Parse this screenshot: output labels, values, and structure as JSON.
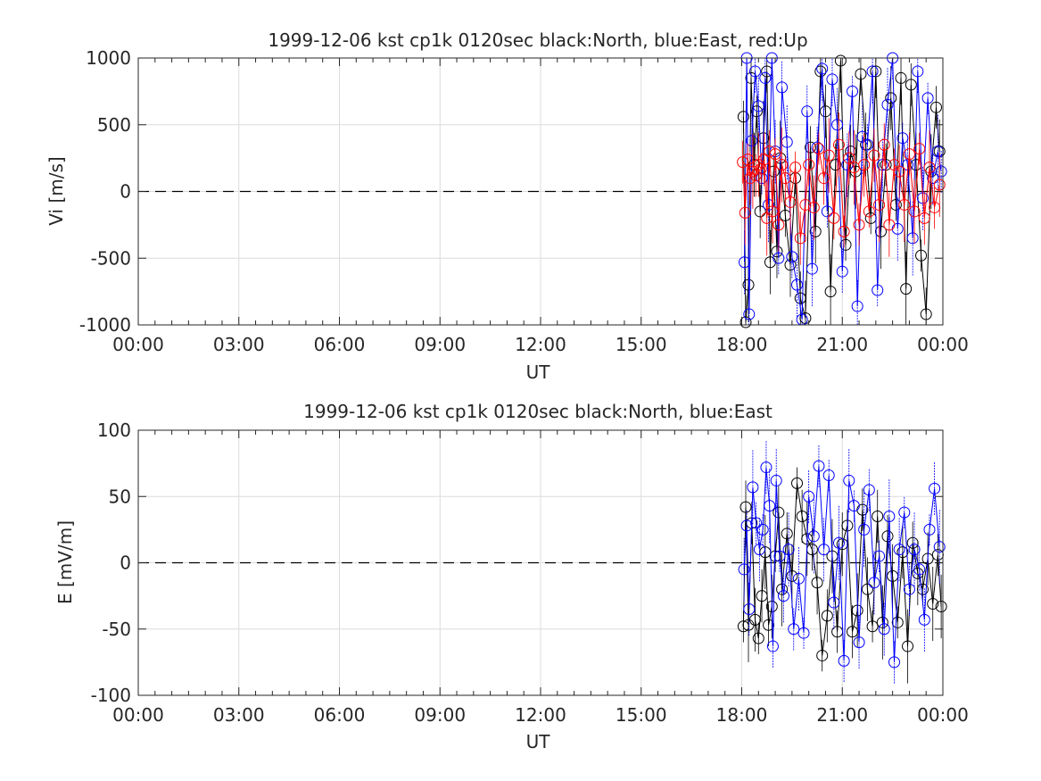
{
  "chart_data": [
    {
      "type": "line",
      "title": "1999-12-06 kst cp1k 0120sec black:North, blue:East, red:Up",
      "xlabel": "UT",
      "ylabel": "Vi [m/s]",
      "xlim": [
        0,
        24
      ],
      "ylim": [
        -1000,
        1000
      ],
      "xticks": [
        0,
        3,
        6,
        9,
        12,
        15,
        18,
        21,
        24
      ],
      "xtick_labels": [
        "00:00",
        "03:00",
        "06:00",
        "09:00",
        "12:00",
        "15:00",
        "18:00",
        "21:00",
        "00:00"
      ],
      "yticks": [
        -1000,
        -500,
        0,
        500,
        1000
      ],
      "ytick_labels": [
        "-1000",
        "-500",
        "0",
        "500",
        "1000"
      ],
      "grid": true,
      "zero_line": "dashed",
      "series": [
        {
          "name": "North",
          "color": "#000000",
          "marker": "circle",
          "x": [
            18.05,
            18.12,
            18.2,
            18.28,
            18.37,
            18.45,
            18.55,
            18.65,
            18.75,
            18.85,
            18.95,
            19.05,
            19.15,
            19.3,
            19.45,
            19.6,
            19.75,
            19.9,
            20.05,
            20.2,
            20.35,
            20.5,
            20.65,
            20.8,
            20.95,
            21.1,
            21.25,
            21.4,
            21.55,
            21.7,
            21.85,
            22.0,
            22.15,
            22.3,
            22.45,
            22.6,
            22.75,
            22.9,
            23.05,
            23.2,
            23.35,
            23.5,
            23.65,
            23.8,
            23.9
          ],
          "y": [
            560,
            -980,
            -700,
            850,
            200,
            600,
            -150,
            400,
            900,
            -530,
            150,
            -450,
            250,
            -180,
            -550,
            100,
            -800,
            -950,
            330,
            -300,
            900,
            600,
            -750,
            200,
            980,
            -400,
            300,
            150,
            880,
            350,
            -200,
            900,
            -300,
            200,
            700,
            -100,
            850,
            -730,
            800,
            200,
            -480,
            -920,
            150,
            630,
            300
          ]
        },
        {
          "name": "East",
          "color": "#0000ff",
          "marker": "circle",
          "x": [
            18.08,
            18.15,
            18.22,
            18.3,
            18.4,
            18.5,
            18.6,
            18.7,
            18.8,
            18.9,
            19.0,
            19.1,
            19.2,
            19.35,
            19.5,
            19.65,
            19.8,
            19.95,
            20.1,
            20.25,
            20.4,
            20.55,
            20.7,
            20.85,
            21.0,
            21.15,
            21.3,
            21.45,
            21.6,
            21.75,
            21.9,
            22.05,
            22.2,
            22.35,
            22.5,
            22.65,
            22.8,
            22.95,
            23.1,
            23.25,
            23.4,
            23.55,
            23.7,
            23.85,
            23.95
          ],
          "y": [
            -530,
            1000,
            -920,
            380,
            900,
            640,
            100,
            850,
            -100,
            1000,
            300,
            -500,
            780,
            370,
            -490,
            -700,
            -960,
            600,
            -580,
            330,
            920,
            -150,
            840,
            500,
            -600,
            200,
            750,
            -860,
            410,
            350,
            900,
            -740,
            200,
            650,
            1000,
            -280,
            400,
            200,
            -350,
            900,
            -50,
            700,
            100,
            300,
            150
          ]
        },
        {
          "name": "Up",
          "color": "#ff0000",
          "marker": "circle",
          "x": [
            18.03,
            18.1,
            18.18,
            18.25,
            18.33,
            18.42,
            18.5,
            18.58,
            18.67,
            18.75,
            18.83,
            18.92,
            19.0,
            19.1,
            19.2,
            19.3,
            19.45,
            19.6,
            19.75,
            19.9,
            20.0,
            20.15,
            20.3,
            20.45,
            20.6,
            20.75,
            20.9,
            21.05,
            21.2,
            21.35,
            21.5,
            21.65,
            21.8,
            21.95,
            22.1,
            22.25,
            22.4,
            22.55,
            22.7,
            22.85,
            23.0,
            23.15,
            23.3,
            23.45,
            23.6,
            23.75,
            23.9
          ],
          "y": [
            220,
            -160,
            240,
            100,
            150,
            120,
            200,
            170,
            240,
            -200,
            300,
            -150,
            280,
            -250,
            200,
            100,
            -80,
            180,
            -350,
            -100,
            200,
            -120,
            320,
            100,
            270,
            -200,
            350,
            -300,
            250,
            180,
            -250,
            200,
            -150,
            270,
            -100,
            350,
            -250,
            200,
            150,
            -100,
            280,
            -150,
            320,
            -200,
            180,
            -120,
            50
          ]
        }
      ]
    },
    {
      "type": "line",
      "title": "1999-12-06 kst cp1k 0120sec black:North, blue:East",
      "xlabel": "UT",
      "ylabel": "E [mV/m]",
      "xlim": [
        0,
        24
      ],
      "ylim": [
        -100,
        100
      ],
      "xticks": [
        0,
        3,
        6,
        9,
        12,
        15,
        18,
        21,
        24
      ],
      "xtick_labels": [
        "00:00",
        "03:00",
        "06:00",
        "09:00",
        "12:00",
        "15:00",
        "18:00",
        "21:00",
        "00:00"
      ],
      "yticks": [
        -100,
        -50,
        0,
        50,
        100
      ],
      "ytick_labels": [
        "-100",
        "-50",
        "0",
        "50",
        "100"
      ],
      "grid": true,
      "zero_line": "dashed",
      "series": [
        {
          "name": "North",
          "color": "#000000",
          "marker": "circle",
          "x": [
            18.05,
            18.12,
            18.2,
            18.3,
            18.4,
            18.5,
            18.6,
            18.7,
            18.8,
            18.9,
            19.0,
            19.1,
            19.2,
            19.35,
            19.5,
            19.65,
            19.8,
            19.95,
            20.1,
            20.25,
            20.4,
            20.55,
            20.7,
            20.85,
            21.0,
            21.15,
            21.3,
            21.45,
            21.6,
            21.75,
            21.9,
            22.05,
            22.2,
            22.35,
            22.5,
            22.65,
            22.8,
            22.95,
            23.1,
            23.25,
            23.4,
            23.55,
            23.7,
            23.85,
            23.95
          ],
          "y": [
            -48,
            42,
            -47,
            30,
            -43,
            -57,
            -25,
            8,
            -47,
            -33,
            5,
            38,
            -20,
            22,
            -10,
            60,
            35,
            18,
            10,
            -15,
            -70,
            -40,
            5,
            -52,
            14,
            28,
            -52,
            -36,
            40,
            -20,
            -48,
            35,
            -45,
            20,
            -10,
            -45,
            8,
            -63,
            15,
            -8,
            -20,
            3,
            -31,
            6,
            -33
          ]
        },
        {
          "name": "East",
          "color": "#0000ff",
          "marker": "circle",
          "x": [
            18.07,
            18.15,
            18.22,
            18.33,
            18.43,
            18.53,
            18.63,
            18.73,
            18.83,
            18.93,
            19.03,
            19.13,
            19.25,
            19.4,
            19.55,
            19.7,
            19.85,
            20.0,
            20.15,
            20.3,
            20.45,
            20.6,
            20.75,
            20.9,
            21.05,
            21.2,
            21.35,
            21.5,
            21.65,
            21.8,
            21.95,
            22.1,
            22.25,
            22.4,
            22.55,
            22.7,
            22.85,
            23.0,
            23.15,
            23.3,
            23.45,
            23.6,
            23.75,
            23.9
          ],
          "y": [
            -5,
            28,
            -35,
            57,
            30,
            10,
            25,
            72,
            43,
            -63,
            62,
            5,
            -25,
            10,
            -50,
            -12,
            -53,
            50,
            20,
            73,
            10,
            66,
            -30,
            15,
            -74,
            62,
            43,
            -60,
            25,
            55,
            -15,
            5,
            -50,
            35,
            -75,
            10,
            38,
            -20,
            10,
            -5,
            -43,
            25,
            56,
            12
          ]
        }
      ]
    }
  ]
}
